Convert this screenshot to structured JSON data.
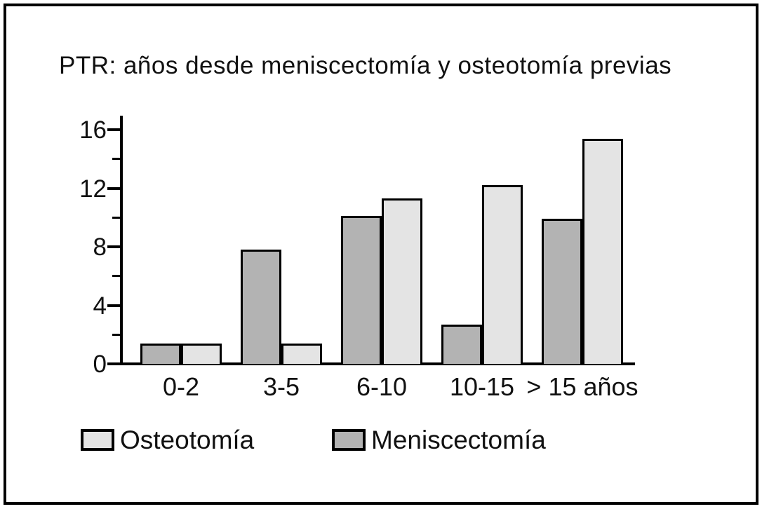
{
  "title": "PTR: años desde meniscectomía y osteotomía previas",
  "chart_data": {
    "type": "bar",
    "title": "PTR: años desde meniscectomía y osteotomía previas",
    "categories": [
      "0-2",
      "3-5",
      "6-10",
      "10-15",
      "> 15 años"
    ],
    "series": [
      {
        "name": "Meniscectomía",
        "color": "#b3b3b3",
        "values": [
          1.4,
          7.8,
          10.1,
          2.7,
          9.9
        ]
      },
      {
        "name": "Osteotomía",
        "color": "#e4e4e4",
        "values": [
          1.4,
          1.4,
          11.3,
          12.2,
          15.4
        ]
      }
    ],
    "xlabel": "",
    "ylabel": "",
    "ylim": [
      0,
      16
    ],
    "yticks": [
      0,
      4,
      8,
      12,
      16
    ],
    "minor_yticks": [
      2,
      6,
      10,
      14
    ],
    "grid": false,
    "legend_position": "bottom",
    "bar_outline_color": "#000000",
    "background_color": "#ffffff"
  },
  "legend": {
    "items": [
      {
        "label": "Osteotomía",
        "color": "#e4e4e4"
      },
      {
        "label": "Meniscectomía",
        "color": "#b3b3b3"
      }
    ]
  }
}
